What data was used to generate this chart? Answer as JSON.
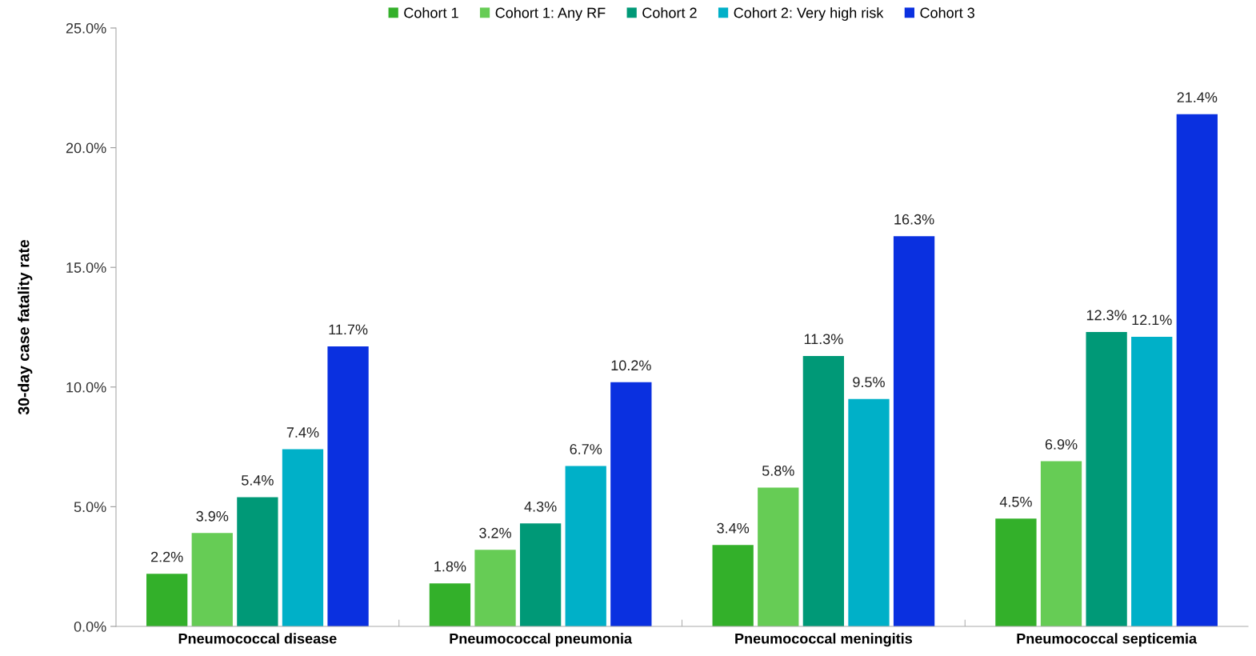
{
  "chart_data": {
    "type": "bar",
    "ylabel": "30-day case fatality rate",
    "categories": [
      "Pneumococcal disease",
      "Pneumococcal pneumonia",
      "Pneumococcal meningitis",
      "Pneumococcal septicemia"
    ],
    "series": [
      {
        "name": "Cohort 1",
        "color": "#33b02a",
        "values": [
          2.2,
          1.8,
          3.4,
          4.5
        ],
        "value_labels": [
          "2.2%",
          "1.8%",
          "3.4%",
          "4.5%"
        ]
      },
      {
        "name": "Cohort 1: Any RF",
        "color": "#66cc55",
        "values": [
          3.9,
          3.2,
          5.8,
          6.9
        ],
        "value_labels": [
          "3.9%",
          "3.2%",
          "5.8%",
          "6.9%"
        ]
      },
      {
        "name": "Cohort 2",
        "color": "#009977",
        "values": [
          5.4,
          4.3,
          11.3,
          12.3
        ],
        "value_labels": [
          "5.4%",
          "4.3%",
          "11.3%",
          "12.3%"
        ]
      },
      {
        "name": "Cohort 2: Very high risk",
        "color": "#00b0c8",
        "values": [
          7.4,
          6.7,
          9.5,
          12.1
        ],
        "value_labels": [
          "7.4%",
          "6.7%",
          "9.5%",
          "12.1%"
        ]
      },
      {
        "name": "Cohort 3",
        "color": "#0a30e0",
        "values": [
          11.7,
          10.2,
          16.3,
          21.4
        ],
        "value_labels": [
          "11.7%",
          "10.2%",
          "16.3%",
          "21.4%"
        ]
      }
    ],
    "ylim": [
      0,
      25
    ],
    "yticks": [
      {
        "value": 0,
        "label": "0.0%"
      },
      {
        "value": 5,
        "label": "5.0%"
      },
      {
        "value": 10,
        "label": "10.0%"
      },
      {
        "value": 15,
        "label": "15.0%"
      },
      {
        "value": 20,
        "label": "20.0%"
      },
      {
        "value": 25,
        "label": "25.0%"
      }
    ],
    "grid": false,
    "legend": "top"
  }
}
